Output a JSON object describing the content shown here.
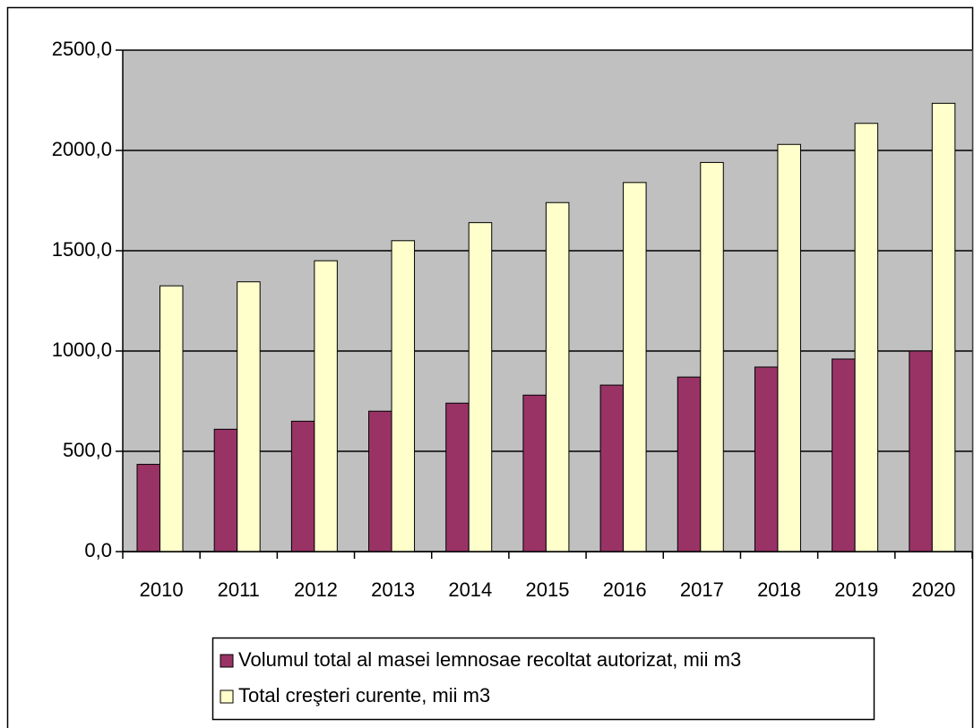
{
  "chart_data": {
    "type": "bar",
    "categories": [
      "2010",
      "2011",
      "2012",
      "2013",
      "2014",
      "2015",
      "2016",
      "2017",
      "2018",
      "2019",
      "2020"
    ],
    "series": [
      {
        "name": "Volumul total al masei lemnosae recoltat autorizat, mii m3",
        "color": "#993366",
        "values": [
          435,
          610,
          650,
          700,
          740,
          780,
          830,
          870,
          920,
          960,
          1000
        ]
      },
      {
        "name": "Total creşteri curente, mii m3",
        "color": "#ffffcc",
        "values": [
          1325,
          1345,
          1450,
          1550,
          1640,
          1740,
          1840,
          1940,
          2030,
          2135,
          2235
        ]
      }
    ],
    "ylim": [
      0,
      2500
    ],
    "yticks": [
      {
        "value": 0,
        "label": "0,0"
      },
      {
        "value": 500,
        "label": "500,0"
      },
      {
        "value": 1000,
        "label": "1000,0"
      },
      {
        "value": 1500,
        "label": "1500,0"
      },
      {
        "value": 2000,
        "label": "2000,0"
      },
      {
        "value": 2500,
        "label": "2500,0"
      }
    ],
    "grid": true,
    "plot_background": "#c0c0c0",
    "legend": "bottom"
  }
}
